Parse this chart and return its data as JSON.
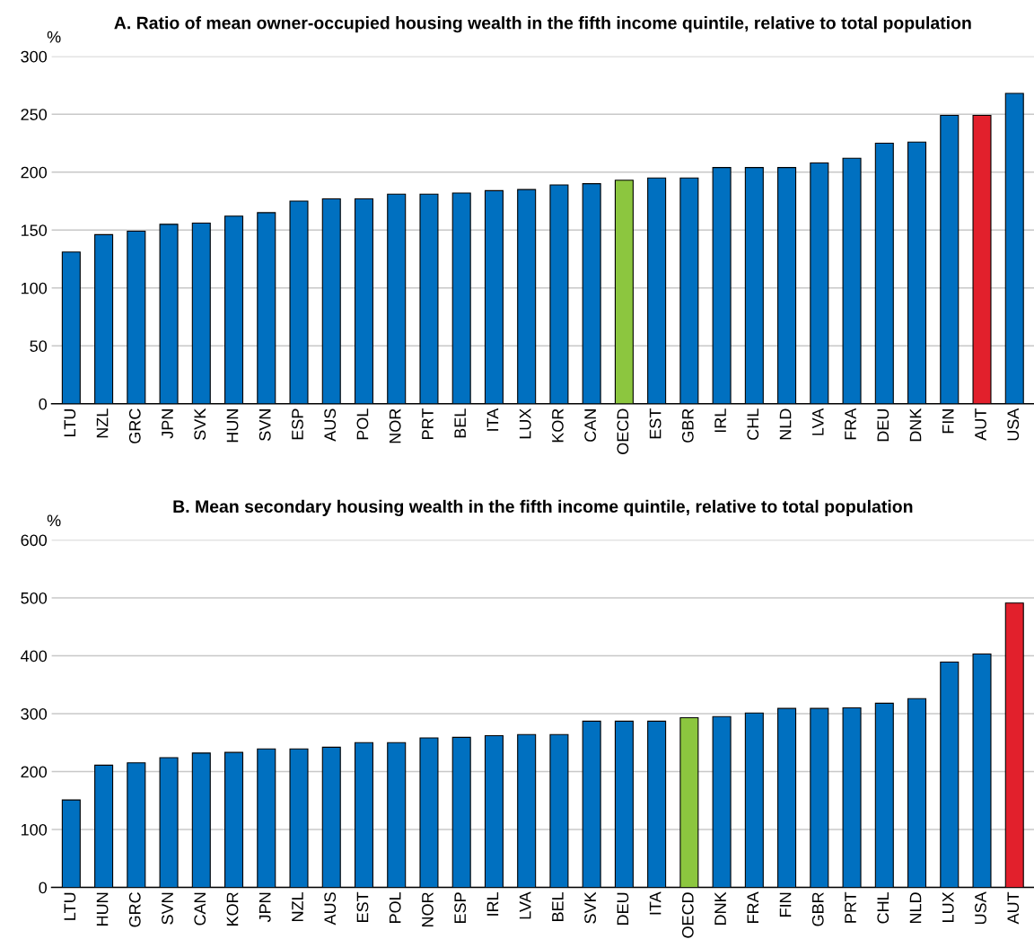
{
  "chart_data": [
    {
      "type": "bar",
      "title": "A. Ratio of mean owner-occupied housing wealth in the fifth income quintile, relative to total population",
      "ylabel": "%",
      "categories": [
        "LTU",
        "NZL",
        "GRC",
        "JPN",
        "SVK",
        "HUN",
        "SVN",
        "ESP",
        "AUS",
        "POL",
        "NOR",
        "PRT",
        "BEL",
        "ITA",
        "LUX",
        "KOR",
        "CAN",
        "OECD",
        "EST",
        "GBR",
        "IRL",
        "CHL",
        "NLD",
        "LVA",
        "FRA",
        "DEU",
        "DNK",
        "FIN",
        "AUT",
        "USA"
      ],
      "values": [
        131,
        146,
        149,
        155,
        156,
        162,
        165,
        175,
        177,
        177,
        181,
        181,
        182,
        184,
        185,
        189,
        190,
        193,
        195,
        195,
        204,
        204,
        204,
        208,
        212,
        225,
        226,
        249,
        249,
        268
      ],
      "colors": [
        "#0070c0",
        "#0070c0",
        "#0070c0",
        "#0070c0",
        "#0070c0",
        "#0070c0",
        "#0070c0",
        "#0070c0",
        "#0070c0",
        "#0070c0",
        "#0070c0",
        "#0070c0",
        "#0070c0",
        "#0070c0",
        "#0070c0",
        "#0070c0",
        "#0070c0",
        "#8cc63f",
        "#0070c0",
        "#0070c0",
        "#0070c0",
        "#0070c0",
        "#0070c0",
        "#0070c0",
        "#0070c0",
        "#0070c0",
        "#0070c0",
        "#0070c0",
        "#e2202c",
        "#0070c0"
      ],
      "ylim": [
        0,
        300
      ],
      "yticks": [
        0,
        50,
        100,
        150,
        200,
        250,
        300
      ],
      "grid": "y"
    },
    {
      "type": "bar",
      "title": "B. Mean secondary housing wealth in the fifth income quintile, relative to total population",
      "ylabel": "%",
      "categories": [
        "LTU",
        "HUN",
        "GRC",
        "SVN",
        "CAN",
        "KOR",
        "JPN",
        "NZL",
        "AUS",
        "EST",
        "POL",
        "NOR",
        "ESP",
        "IRL",
        "LVA",
        "BEL",
        "SVK",
        "DEU",
        "ITA",
        "OECD",
        "DNK",
        "FRA",
        "FIN",
        "GBR",
        "PRT",
        "CHL",
        "NLD",
        "LUX",
        "USA",
        "AUT"
      ],
      "values": [
        151,
        211,
        215,
        224,
        232,
        233,
        239,
        239,
        242,
        250,
        250,
        258,
        259,
        262,
        264,
        264,
        287,
        287,
        287,
        293,
        295,
        301,
        309,
        309,
        310,
        318,
        326,
        389,
        403,
        491
      ],
      "colors": [
        "#0070c0",
        "#0070c0",
        "#0070c0",
        "#0070c0",
        "#0070c0",
        "#0070c0",
        "#0070c0",
        "#0070c0",
        "#0070c0",
        "#0070c0",
        "#0070c0",
        "#0070c0",
        "#0070c0",
        "#0070c0",
        "#0070c0",
        "#0070c0",
        "#0070c0",
        "#0070c0",
        "#0070c0",
        "#8cc63f",
        "#0070c0",
        "#0070c0",
        "#0070c0",
        "#0070c0",
        "#0070c0",
        "#0070c0",
        "#0070c0",
        "#0070c0",
        "#0070c0",
        "#e2202c"
      ],
      "ylim": [
        0,
        600
      ],
      "yticks": [
        0,
        100,
        200,
        300,
        400,
        500,
        600
      ],
      "grid": "y"
    }
  ]
}
